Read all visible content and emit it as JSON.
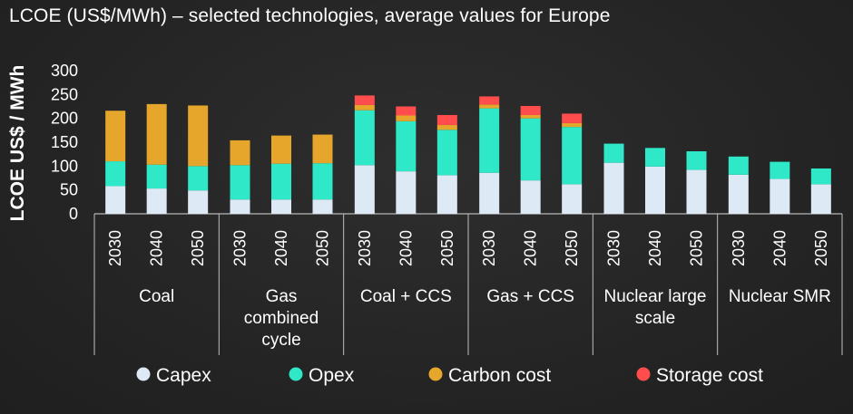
{
  "title": "LCOE (US$/MWh) – selected technologies, average values for Europe",
  "chart_data": {
    "type": "bar",
    "stacked": true,
    "title": "LCOE (US$/MWh) – selected technologies, average values for Europe",
    "ylabel": "LCOE US$ / MWh",
    "ylim": [
      0,
      300
    ],
    "yticks": [
      0,
      50,
      100,
      150,
      200,
      250,
      300
    ],
    "groups": [
      {
        "label_lines": [
          "Coal"
        ],
        "categories": [
          "2030",
          "2040",
          "2050"
        ]
      },
      {
        "label_lines": [
          "Gas",
          "combined",
          "cycle"
        ],
        "categories": [
          "2030",
          "2040",
          "2050"
        ]
      },
      {
        "label_lines": [
          "Coal + CCS"
        ],
        "categories": [
          "2030",
          "2040",
          "2050"
        ]
      },
      {
        "label_lines": [
          "Gas + CCS"
        ],
        "categories": [
          "2030",
          "2040",
          "2050"
        ]
      },
      {
        "label_lines": [
          "Nuclear large",
          "scale"
        ],
        "categories": [
          "2030",
          "2040",
          "2050"
        ]
      },
      {
        "label_lines": [
          "Nuclear SMR"
        ],
        "categories": [
          "2030",
          "2040",
          "2050"
        ]
      }
    ],
    "series": [
      {
        "name": "Capex",
        "color": "#ddeaf5",
        "values": [
          58,
          53,
          49,
          30,
          30,
          30,
          102,
          89,
          81,
          86,
          70,
          62,
          107,
          99,
          92,
          82,
          73,
          62
        ]
      },
      {
        "name": "Opex",
        "color": "#2ee8c8",
        "values": [
          52,
          50,
          51,
          72,
          75,
          76,
          115,
          105,
          95,
          135,
          130,
          120,
          40,
          39,
          39,
          38,
          36,
          33
        ]
      },
      {
        "name": "Carbon cost",
        "color": "#e6a62c",
        "values": [
          106,
          127,
          127,
          52,
          59,
          60,
          11,
          12,
          10,
          8,
          7,
          8,
          0,
          0,
          0,
          0,
          0,
          0
        ]
      },
      {
        "name": "Storage cost",
        "color": "#ff4d4d",
        "values": [
          0,
          0,
          0,
          0,
          0,
          0,
          20,
          19,
          21,
          17,
          19,
          20,
          0,
          0,
          0,
          0,
          0,
          0
        ]
      }
    ],
    "legend_position": "bottom",
    "grid": false
  }
}
